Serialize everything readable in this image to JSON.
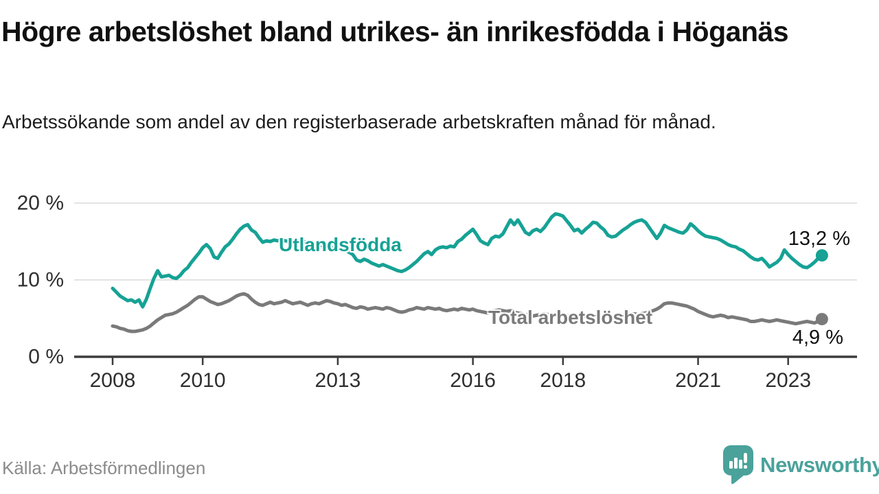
{
  "header": {
    "title": "Högre arbetslöshet bland utrikes- än inrikesfödda i Höganäs",
    "subtitle": "Arbetssökande som andel av den registerbaserade arbetskraften månad för månad."
  },
  "footer": {
    "source": "Källa: Arbetsförmedlingen",
    "brand": "Newsworthy",
    "logo_icon": "speech-bubble-bar-chart-icon"
  },
  "colors": {
    "accent_teal": "#16a295",
    "line_gray": "#7a7a7a",
    "logo_teal": "#4aa29b",
    "text_dark": "#111111",
    "axis_text": "#2f2f2f",
    "gridline": "#e3e3e3",
    "axis_line": "#3c3c3c",
    "source_gray": "#8b8b8b"
  },
  "chart_data": {
    "type": "line",
    "unit": "%",
    "x_start": "2008-01",
    "x_end": "2023-10",
    "x_frequency": "monthly",
    "grid": "horizontal",
    "legend_position": "inline-on-lines",
    "ylim": [
      0,
      21
    ],
    "x_ticks": [
      2008,
      2010,
      2013,
      2016,
      2018,
      2021,
      2023
    ],
    "y_ticks": [
      {
        "value": 20,
        "label": "20 %"
      },
      {
        "value": 10,
        "label": "10 %"
      },
      {
        "value": 0,
        "label": "0 %"
      }
    ],
    "series": [
      {
        "name": "Utlandsfödda",
        "color": "#16a295",
        "end_label": "13,2 %",
        "end_value": 13.2,
        "values": [
          8.9,
          8.4,
          7.9,
          7.6,
          7.3,
          7.4,
          7.1,
          7.4,
          6.5,
          7.5,
          8.9,
          10.2,
          11.2,
          10.4,
          10.5,
          10.6,
          10.3,
          10.2,
          10.6,
          11.2,
          11.6,
          12.3,
          12.9,
          13.5,
          14.2,
          14.6,
          14.1,
          13.0,
          12.8,
          13.6,
          14.3,
          14.7,
          15.3,
          16.0,
          16.6,
          17.0,
          17.2,
          16.5,
          16.2,
          15.5,
          14.9,
          15.1,
          15.0,
          15.2,
          15.1,
          15.2,
          15.1,
          15.0,
          15.0,
          14.9,
          15.1,
          15.0,
          14.8,
          14.6,
          14.5,
          14.6,
          14.4,
          14.2,
          14.3,
          14.1,
          14.0,
          13.8,
          13.9,
          13.6,
          13.3,
          12.6,
          12.4,
          12.7,
          12.5,
          12.2,
          12.0,
          11.8,
          12.0,
          11.8,
          11.6,
          11.4,
          11.2,
          11.1,
          11.3,
          11.6,
          12.0,
          12.4,
          12.9,
          13.4,
          13.7,
          13.3,
          13.9,
          14.2,
          14.3,
          14.2,
          14.4,
          14.3,
          15.0,
          15.3,
          15.8,
          16.2,
          16.6,
          15.9,
          15.1,
          14.8,
          14.6,
          15.4,
          15.7,
          15.6,
          16.0,
          16.9,
          17.8,
          17.2,
          17.8,
          17.0,
          16.2,
          15.9,
          16.4,
          16.6,
          16.3,
          16.8,
          17.5,
          18.2,
          18.6,
          18.5,
          18.3,
          17.7,
          17.1,
          16.4,
          16.6,
          16.1,
          16.6,
          17.0,
          17.5,
          17.4,
          16.9,
          16.5,
          15.8,
          15.6,
          15.7,
          16.1,
          16.5,
          16.8,
          17.2,
          17.5,
          17.7,
          17.8,
          17.5,
          16.8,
          16.1,
          15.4,
          16.1,
          17.1,
          16.8,
          16.6,
          16.4,
          16.2,
          16.1,
          16.5,
          17.3,
          16.9,
          16.4,
          16.0,
          15.7,
          15.6,
          15.5,
          15.4,
          15.2,
          14.9,
          14.6,
          14.4,
          14.3,
          14.0,
          13.8,
          13.4,
          13.0,
          12.7,
          12.6,
          12.8,
          12.3,
          11.7,
          12.0,
          12.3,
          12.8,
          13.9,
          13.3,
          12.8,
          12.4,
          12.0,
          11.7,
          11.6,
          11.9,
          12.3,
          12.8,
          13.2
        ]
      },
      {
        "name": "Total arbetslöshet",
        "color": "#7a7a7a",
        "end_label": "4,9 %",
        "end_value": 4.9,
        "values": [
          4.0,
          3.9,
          3.7,
          3.6,
          3.4,
          3.3,
          3.3,
          3.4,
          3.5,
          3.7,
          4.0,
          4.4,
          4.8,
          5.1,
          5.4,
          5.5,
          5.6,
          5.8,
          6.1,
          6.4,
          6.7,
          7.1,
          7.5,
          7.8,
          7.8,
          7.5,
          7.2,
          7.0,
          6.8,
          6.9,
          7.1,
          7.3,
          7.6,
          7.9,
          8.1,
          8.2,
          8.0,
          7.5,
          7.1,
          6.8,
          6.7,
          6.9,
          7.1,
          6.9,
          7.0,
          7.1,
          7.3,
          7.1,
          6.9,
          7.0,
          7.1,
          6.9,
          6.7,
          6.9,
          7.0,
          6.9,
          7.1,
          7.3,
          7.2,
          7.0,
          6.9,
          6.7,
          6.8,
          6.6,
          6.4,
          6.3,
          6.5,
          6.4,
          6.2,
          6.3,
          6.4,
          6.3,
          6.2,
          6.4,
          6.3,
          6.1,
          5.9,
          5.8,
          5.9,
          6.1,
          6.2,
          6.4,
          6.3,
          6.2,
          6.4,
          6.3,
          6.2,
          6.3,
          6.1,
          6.0,
          6.1,
          6.2,
          6.1,
          6.3,
          6.2,
          6.1,
          6.2,
          6.0,
          5.9,
          5.8,
          5.7,
          5.9,
          6.0,
          6.1,
          6.0,
          5.9,
          6.0,
          5.8,
          5.7,
          5.6,
          5.5,
          5.4,
          5.3,
          5.4,
          5.5,
          5.6,
          5.5,
          5.4,
          5.5,
          5.6,
          5.5,
          5.4,
          5.3,
          5.2,
          5.1,
          5.2,
          5.3,
          5.4,
          5.3,
          5.2,
          5.3,
          5.4,
          5.3,
          5.2,
          5.3,
          5.4,
          5.3,
          5.4,
          5.5,
          5.6,
          5.5,
          5.6,
          5.7,
          5.8,
          6.0,
          6.2,
          6.5,
          6.9,
          7.0,
          7.0,
          6.9,
          6.8,
          6.7,
          6.6,
          6.4,
          6.2,
          5.9,
          5.7,
          5.5,
          5.3,
          5.2,
          5.3,
          5.4,
          5.3,
          5.1,
          5.2,
          5.1,
          5.0,
          4.9,
          4.8,
          4.6,
          4.6,
          4.7,
          4.8,
          4.7,
          4.6,
          4.7,
          4.8,
          4.7,
          4.6,
          4.5,
          4.4,
          4.3,
          4.4,
          4.5,
          4.6,
          4.5,
          4.4,
          4.6,
          4.9
        ]
      }
    ]
  }
}
